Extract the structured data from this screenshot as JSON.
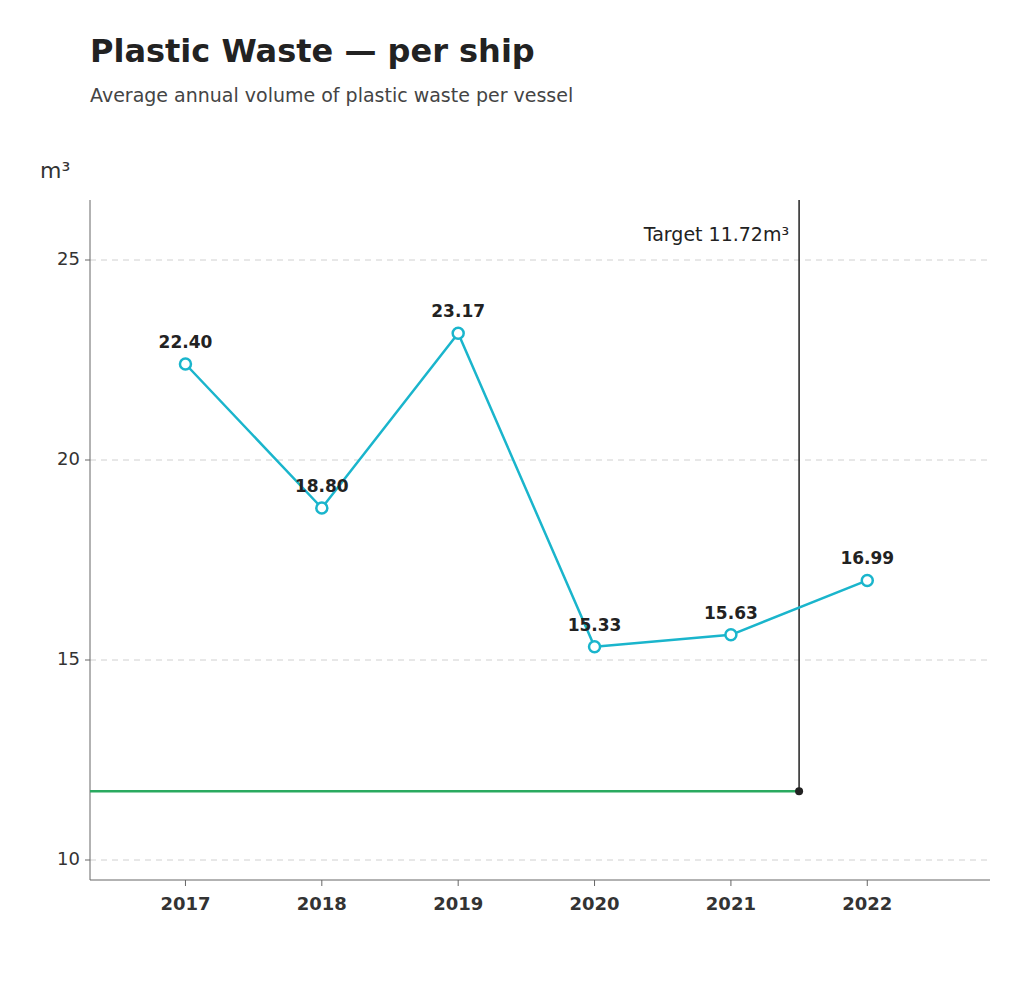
{
  "chart_data": {
    "type": "line",
    "title": "Plastic Waste — per ship",
    "subtitle": "Average annual volume of plastic waste per vessel",
    "y_label": "m³",
    "x": [
      2017,
      2018,
      2019,
      2020,
      2021,
      2022
    ],
    "values": [
      22.4,
      18.8,
      23.17,
      15.33,
      15.63,
      16.99
    ],
    "value_labels": [
      "22.40",
      "18.80",
      "23.17",
      "15.33",
      "15.63",
      "16.99"
    ],
    "data_labels": true,
    "color": "#1ab5cc",
    "marker": "circle",
    "xlim": [
      2016.3,
      2022.9
    ],
    "xticks": [
      2017,
      2018,
      2019,
      2020,
      2021,
      2022
    ],
    "ylim": [
      9.5,
      26.5
    ],
    "yticks": [
      10,
      15,
      20,
      25
    ],
    "grid": true,
    "annotations": [
      {
        "label": "Target 11.72m³",
        "x": 2021.5,
        "y": 11.72,
        "color": "#2aaa60"
      }
    ]
  }
}
